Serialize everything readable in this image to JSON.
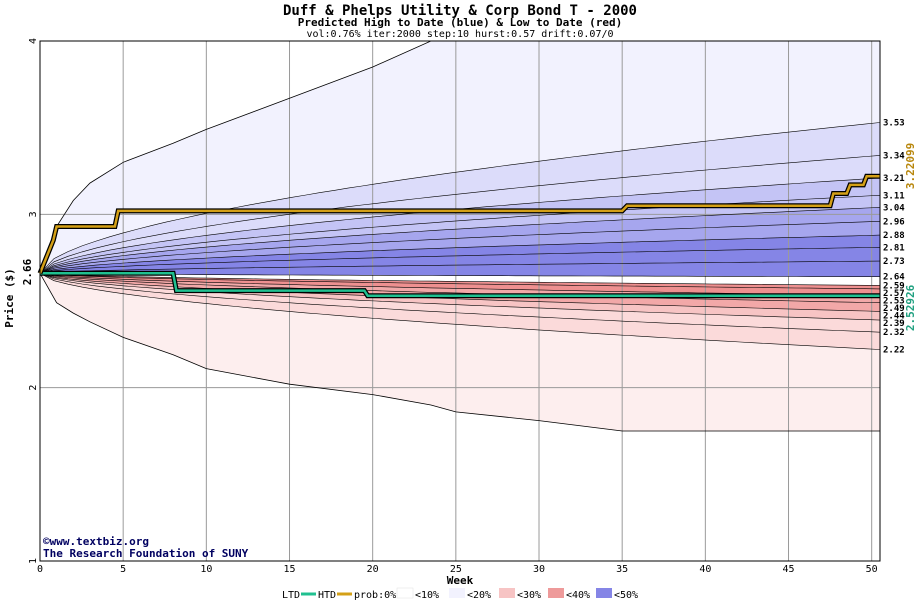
{
  "header": {
    "title": "Duff & Phelps Utility & Corp Bond T - 2000",
    "subtitle": "Predicted High to Date (blue) &  Low to Date (red)",
    "params": "vol:0.76% iter:2000 step:10 hurst:0.57 drift:0.07/0"
  },
  "credits": {
    "site": "©www.textbiz.org",
    "org": "The Research Foundation of SUNY"
  },
  "legend": {
    "ltd": "LTD",
    "htd": "HTD",
    "prob": "prob:0%",
    "b10": "<10%",
    "b20": "<20%",
    "b30": "<30%",
    "b40": "<40%",
    "b50": "<50%"
  },
  "colors": {
    "htd_line": "#d4a017",
    "ltd_line": "#20c090",
    "high_end_label": "#b8860b",
    "low_end_label": "#20a080",
    "blue_bands": [
      "#f2f2fe",
      "#dcdcfa",
      "#c4c4f5",
      "#a6a6ee",
      "#8585e6"
    ],
    "red_bands": [
      "#fdeeee",
      "#fbdada",
      "#f7c4c4",
      "#f2a8a8",
      "#ee9090"
    ]
  },
  "chart_data": {
    "type": "area",
    "xlabel": "Week",
    "ylabel": "Price ($)",
    "xlim": [
      0,
      50.5
    ],
    "ylim": [
      1,
      4
    ],
    "x_ticks": [
      0,
      5,
      10,
      15,
      20,
      25,
      30,
      35,
      40,
      45,
      50
    ],
    "y_ticks": [
      1,
      2,
      3,
      4
    ],
    "grid": true,
    "start_price": "2.66",
    "high_quantile_end_values": [
      "3.53",
      "3.34",
      "3.21",
      "3.11",
      "3.04",
      "2.96",
      "2.88",
      "2.81",
      "2.73",
      "2.64"
    ],
    "low_quantile_end_values": [
      "2.59",
      "2.57",
      "2.53",
      "2.49",
      "2.44",
      "2.39",
      "2.32",
      "2.22"
    ],
    "outer_envelope": {
      "x": [
        0,
        1,
        2,
        3,
        5,
        8,
        10,
        15,
        20,
        23.5,
        25,
        30,
        35,
        40,
        45,
        50.5
      ],
      "upper": [
        2.66,
        2.93,
        3.08,
        3.18,
        3.3,
        3.41,
        3.49,
        3.67,
        3.85,
        4.0,
        4.0,
        4.0,
        4.0,
        4.0,
        4.0,
        4.0
      ],
      "lower": [
        2.66,
        2.49,
        2.43,
        2.38,
        2.29,
        2.19,
        2.11,
        2.02,
        1.96,
        1.9,
        1.86,
        1.81,
        1.75,
        1.75,
        1.75,
        1.75
      ]
    },
    "htd_series": {
      "name": "HTD",
      "end_value": "3.22099",
      "x": [
        0,
        0.8,
        1.0,
        4.5,
        4.7,
        35,
        35.3,
        47.5,
        47.7,
        48.5,
        48.7,
        49.5,
        49.7,
        50.5
      ],
      "y": [
        2.66,
        2.85,
        2.93,
        2.93,
        3.02,
        3.02,
        3.05,
        3.05,
        3.12,
        3.12,
        3.17,
        3.17,
        3.22,
        3.22
      ]
    },
    "ltd_series": {
      "name": "LTD",
      "end_value": "2.52926",
      "x": [
        0,
        8.0,
        8.2,
        19.5,
        19.7,
        50.5
      ],
      "y": [
        2.66,
        2.66,
        2.56,
        2.56,
        2.53,
        2.53
      ]
    }
  }
}
